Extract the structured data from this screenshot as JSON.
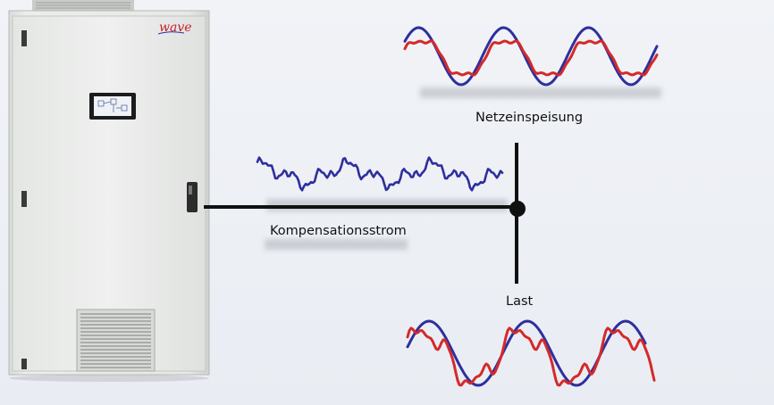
{
  "diagram": {
    "labels": {
      "grid_feed": "Netzeinspeisung",
      "compensation_current": "Kompensationsstrom",
      "load": "Last"
    },
    "cabinet": {
      "logo_text": "wave"
    },
    "waveforms": {
      "grid_color_blue": "#2e2f9e",
      "grid_color_red": "#d42a2a",
      "compensation_color": "#2e2f9e",
      "load_color_blue": "#2e2f9e",
      "load_color_red": "#d42a2a"
    },
    "colors": {
      "background": "#eef1f5",
      "bus_line": "#111111",
      "cabinet_body": "#e7e8e6",
      "logo_red": "#c8202a"
    }
  }
}
